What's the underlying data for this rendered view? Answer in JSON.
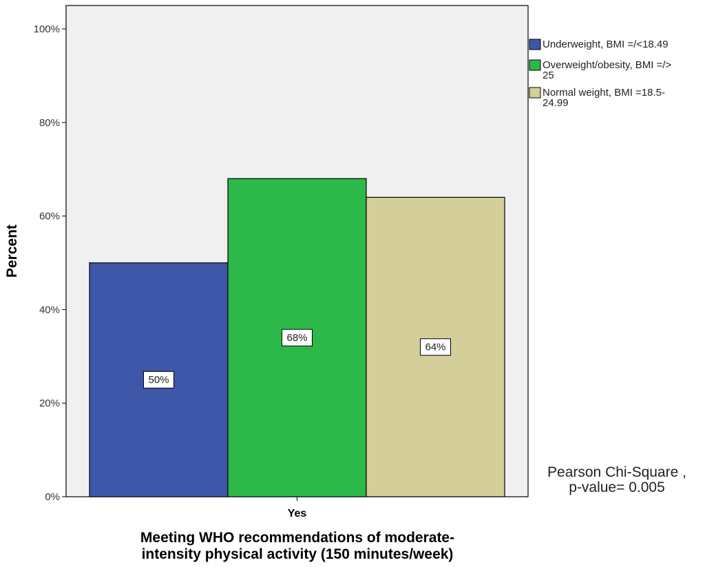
{
  "chart_data": {
    "type": "bar",
    "categories": [
      "Yes"
    ],
    "series": [
      {
        "name": "Underweight, BMI =/<18.49",
        "values": [
          50
        ],
        "label": "50%",
        "color": "#3f57a8"
      },
      {
        "name": "Overweight/obesity, BMI =/> 25",
        "values": [
          68
        ],
        "label": "68%",
        "color": "#2db84a"
      },
      {
        "name": "Normal weight, BMI =18.5-24.99",
        "values": [
          64
        ],
        "label": "64%",
        "color": "#d4cf9a"
      }
    ],
    "xlabel_lines": [
      "Meeting WHO recommendations of moderate-",
      "intensity physical activity (150 minutes/week)"
    ],
    "ylabel": "Percent",
    "ylim": [
      0,
      100
    ],
    "yticks": [
      {
        "value": 0,
        "label": "0%"
      },
      {
        "value": 20,
        "label": "20%"
      },
      {
        "value": 40,
        "label": "40%"
      },
      {
        "value": 60,
        "label": "60%"
      },
      {
        "value": 80,
        "label": "80%"
      },
      {
        "value": 100,
        "label": "100%"
      }
    ],
    "legend": {
      "placement": "top-right",
      "entries": [
        {
          "lines": [
            "Underweight, BMI =/<18.49"
          ],
          "color": "#3f57a8"
        },
        {
          "lines": [
            "Overweight/obesity, BMI =/>",
            "25"
          ],
          "color": "#2db84a"
        },
        {
          "lines": [
            "Normal weight, BMI =18.5-",
            "24.99"
          ],
          "color": "#d4cf9a"
        }
      ]
    },
    "annotation_lines": [
      "Pearson Chi-Square ,",
      "p-value= 0.005"
    ],
    "plot_background": "#f0f0f0",
    "grid": false
  }
}
